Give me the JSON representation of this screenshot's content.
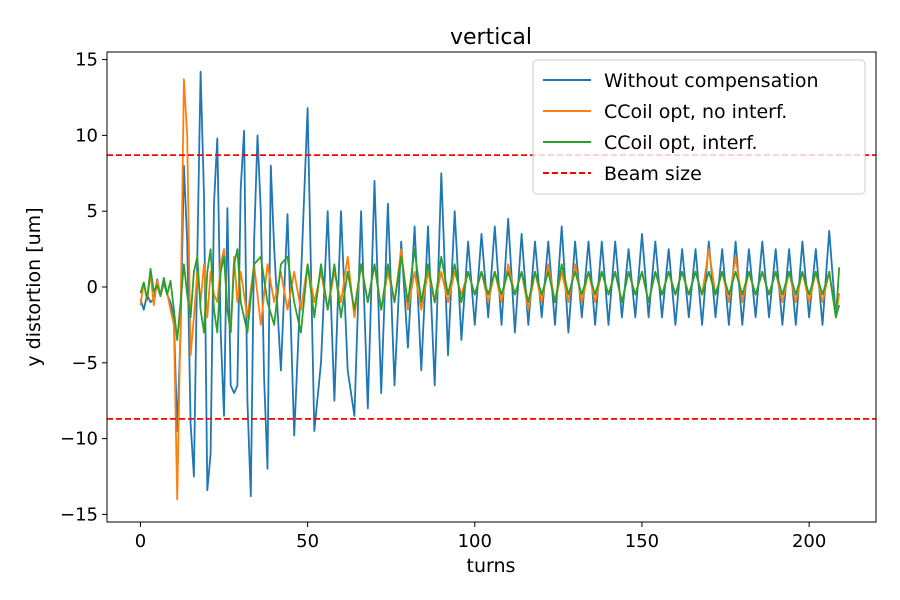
{
  "chart_data": {
    "type": "line",
    "title": "vertical",
    "xlabel": "turns",
    "ylabel": "y distortion [um]",
    "xlim": [
      -10,
      220
    ],
    "ylim": [
      -15.5,
      15.5
    ],
    "xticks": [
      0,
      50,
      100,
      150,
      200
    ],
    "yticks": [
      -15,
      -10,
      -5,
      0,
      5,
      10,
      15
    ],
    "legend_position": "top-right",
    "grid": false,
    "series": [
      {
        "name": "Without compensation",
        "color": "#1f77b4",
        "style": "solid",
        "x": [
          0,
          1,
          2,
          3,
          4,
          5,
          6,
          7,
          8,
          9,
          10,
          11,
          12,
          13,
          14,
          15,
          16,
          17,
          18,
          19,
          20,
          21,
          22,
          23,
          24,
          25,
          26,
          27,
          28,
          29,
          30,
          31,
          32,
          33,
          34,
          35,
          36,
          37,
          38,
          39,
          40,
          42,
          44,
          46,
          48,
          50,
          52,
          54,
          56,
          58,
          60,
          62,
          64,
          66,
          68,
          70,
          72,
          74,
          76,
          78,
          80,
          82,
          84,
          86,
          88,
          90,
          92,
          94,
          96,
          98,
          100,
          102,
          104,
          106,
          108,
          110,
          112,
          114,
          116,
          118,
          120,
          122,
          124,
          126,
          128,
          130,
          132,
          134,
          136,
          138,
          140,
          142,
          144,
          146,
          148,
          150,
          152,
          154,
          156,
          158,
          160,
          162,
          164,
          166,
          168,
          170,
          172,
          174,
          176,
          178,
          180,
          182,
          184,
          186,
          188,
          190,
          192,
          194,
          196,
          198,
          200,
          202,
          204,
          206,
          208,
          209
        ],
        "y": [
          -0.8,
          -1.5,
          -0.5,
          -1.0,
          -0.8,
          0.5,
          -0.6,
          0.3,
          -0.5,
          -1.0,
          -2.0,
          -9.5,
          -3.0,
          8.0,
          3.0,
          -9.0,
          -12.5,
          2.0,
          14.2,
          6.0,
          -13.4,
          -11.0,
          5.5,
          9.8,
          -3.0,
          -8.5,
          5.2,
          -6.5,
          -7.0,
          -6.5,
          6.5,
          10.3,
          -7.5,
          -13.8,
          3.0,
          10.0,
          5.0,
          -6.0,
          -12.0,
          8.0,
          2.5,
          -5.5,
          4.8,
          -9.8,
          0.5,
          11.8,
          -9.5,
          -5.0,
          5.0,
          -7.5,
          5.0,
          -5.5,
          -8.5,
          5.0,
          -8.0,
          7.0,
          -7.0,
          5.5,
          -6.5,
          3.0,
          -4.0,
          4.0,
          -5.5,
          4.0,
          -6.5,
          7.5,
          -4.5,
          5.0,
          -3.5,
          3.0,
          -2.5,
          3.5,
          -2.0,
          4.0,
          -2.5,
          4.5,
          -3.0,
          3.5,
          -2.5,
          3.0,
          -2.0,
          3.0,
          -2.5,
          4.0,
          -3.0,
          3.0,
          -2.0,
          3.0,
          -2.5,
          3.0,
          -2.5,
          3.0,
          -2.0,
          2.5,
          -2.0,
          3.5,
          -2.0,
          3.0,
          -2.0,
          2.5,
          -2.5,
          2.5,
          -2.0,
          2.5,
          -2.5,
          3.0,
          -2.0,
          2.5,
          -2.5,
          3.0,
          -2.5,
          2.5,
          -2.0,
          3.0,
          -2.0,
          2.5,
          -2.5,
          2.5,
          -2.5,
          3.0,
          -2.0,
          2.5,
          -2.5,
          3.7,
          -2.0,
          -1.2
        ]
      },
      {
        "name": "CCoil opt, no interf.",
        "color": "#ff7f0e",
        "style": "solid",
        "x": [
          0,
          1,
          2,
          3,
          4,
          5,
          6,
          7,
          8,
          9,
          10,
          11,
          12,
          13,
          14,
          15,
          16,
          17,
          18,
          19,
          20,
          21,
          22,
          23,
          24,
          25,
          26,
          27,
          28,
          29,
          30,
          32,
          34,
          36,
          38,
          40,
          42,
          44,
          46,
          48,
          50,
          52,
          54,
          56,
          58,
          60,
          62,
          64,
          66,
          68,
          70,
          72,
          74,
          76,
          78,
          80,
          82,
          84,
          86,
          88,
          90,
          92,
          94,
          96,
          98,
          100,
          102,
          104,
          106,
          108,
          110,
          112,
          114,
          116,
          118,
          120,
          122,
          124,
          126,
          128,
          130,
          132,
          134,
          136,
          138,
          140,
          142,
          144,
          146,
          148,
          150,
          152,
          154,
          156,
          158,
          160,
          162,
          164,
          166,
          168,
          170,
          172,
          174,
          176,
          178,
          180,
          182,
          184,
          186,
          188,
          190,
          192,
          194,
          196,
          198,
          200,
          202,
          204,
          206,
          208,
          209
        ],
        "y": [
          -1.2,
          0.3,
          -0.9,
          0.9,
          -1.2,
          0.4,
          -0.6,
          0.5,
          -0.4,
          -1.5,
          -2.5,
          -14.0,
          -2.0,
          13.7,
          10.0,
          -4.5,
          -2.0,
          1.0,
          -1.0,
          1.5,
          -2.0,
          1.0,
          -0.5,
          -1.0,
          1.5,
          2.5,
          -1.5,
          -3.0,
          2.0,
          -1.0,
          1.0,
          -2.0,
          1.5,
          -2.5,
          1.5,
          -1.0,
          1.0,
          -1.5,
          1.0,
          -1.5,
          1.5,
          -1.0,
          1.0,
          -1.5,
          1.0,
          -1.0,
          2.0,
          -2.0,
          1.5,
          -1.0,
          1.5,
          -1.5,
          1.0,
          -1.0,
          2.5,
          -1.5,
          1.0,
          -1.5,
          1.0,
          -1.0,
          1.0,
          -1.0,
          1.0,
          -0.5,
          1.0,
          -0.5,
          1.0,
          -1.0,
          1.0,
          -1.0,
          1.5,
          -0.5,
          1.0,
          -1.5,
          1.0,
          -1.0,
          1.5,
          -1.0,
          1.0,
          -1.0,
          1.5,
          -1.0,
          1.0,
          -1.0,
          1.0,
          -0.5,
          1.0,
          -1.0,
          1.0,
          -0.5,
          1.0,
          -1.0,
          1.0,
          -0.5,
          1.0,
          -0.5,
          1.0,
          -0.5,
          1.0,
          -0.5,
          2.5,
          -0.5,
          1.0,
          -1.0,
          2.0,
          -1.0,
          1.0,
          -0.5,
          1.0,
          -0.5,
          1.0,
          -1.0,
          1.0,
          -1.0,
          1.0,
          -1.0,
          1.0,
          -1.0,
          1.0,
          -2.0,
          -0.4
        ]
      },
      {
        "name": "CCoil opt, interf.",
        "color": "#2ca02c",
        "style": "solid",
        "x": [
          0,
          1,
          2,
          3,
          4,
          5,
          6,
          7,
          8,
          9,
          10,
          11,
          12,
          13,
          14,
          15,
          16,
          17,
          18,
          19,
          20,
          21,
          22,
          23,
          24,
          25,
          26,
          27,
          28,
          29,
          30,
          32,
          34,
          36,
          38,
          40,
          42,
          44,
          46,
          48,
          50,
          52,
          54,
          56,
          58,
          60,
          62,
          64,
          66,
          68,
          70,
          72,
          74,
          76,
          78,
          80,
          82,
          84,
          86,
          88,
          90,
          92,
          94,
          96,
          98,
          100,
          102,
          104,
          106,
          108,
          110,
          112,
          114,
          116,
          118,
          120,
          122,
          124,
          126,
          128,
          130,
          132,
          134,
          136,
          138,
          140,
          142,
          144,
          146,
          148,
          150,
          152,
          154,
          156,
          158,
          160,
          162,
          164,
          166,
          168,
          170,
          172,
          174,
          176,
          178,
          180,
          182,
          184,
          186,
          188,
          190,
          192,
          194,
          196,
          198,
          200,
          202,
          204,
          206,
          208,
          209
        ],
        "y": [
          -0.4,
          0.3,
          -0.8,
          1.2,
          -0.3,
          0.1,
          -0.6,
          0.6,
          -0.5,
          0.4,
          -1.5,
          -3.5,
          -1.0,
          1.5,
          -0.5,
          -2.0,
          1.0,
          2.0,
          -1.5,
          -3.0,
          1.0,
          2.5,
          -1.5,
          -3.0,
          1.0,
          2.0,
          -1.5,
          -3.0,
          1.5,
          2.5,
          -1.0,
          -3.0,
          1.5,
          2.0,
          -1.0,
          -2.5,
          1.5,
          2.0,
          -1.0,
          -3.0,
          1.5,
          -2.0,
          1.5,
          -1.5,
          1.5,
          -2.0,
          1.0,
          -1.5,
          1.5,
          -1.0,
          1.5,
          -1.5,
          1.5,
          -1.0,
          2.0,
          -1.0,
          2.5,
          -1.0,
          1.5,
          -1.0,
          2.0,
          -0.5,
          1.5,
          -1.0,
          1.0,
          -0.5,
          1.0,
          -0.5,
          1.0,
          -0.5,
          1.0,
          -0.5,
          1.0,
          -1.0,
          1.0,
          -0.5,
          1.0,
          -1.0,
          1.5,
          -0.5,
          1.0,
          -0.5,
          1.0,
          -0.5,
          1.0,
          -0.5,
          1.0,
          -1.0,
          1.0,
          -0.5,
          1.0,
          -1.0,
          1.0,
          -0.5,
          1.0,
          -0.5,
          1.0,
          -0.5,
          1.0,
          -0.5,
          1.0,
          -0.5,
          1.0,
          -0.5,
          1.0,
          -0.5,
          1.0,
          -0.5,
          1.0,
          -0.5,
          1.0,
          -0.5,
          1.0,
          -0.5,
          1.0,
          -0.5,
          1.0,
          -0.5,
          1.0,
          -2.0,
          1.3
        ]
      },
      {
        "name": "Beam size",
        "color": "#ff0000",
        "style": "dashed",
        "hlines": [
          8.7,
          -8.7
        ]
      }
    ]
  }
}
